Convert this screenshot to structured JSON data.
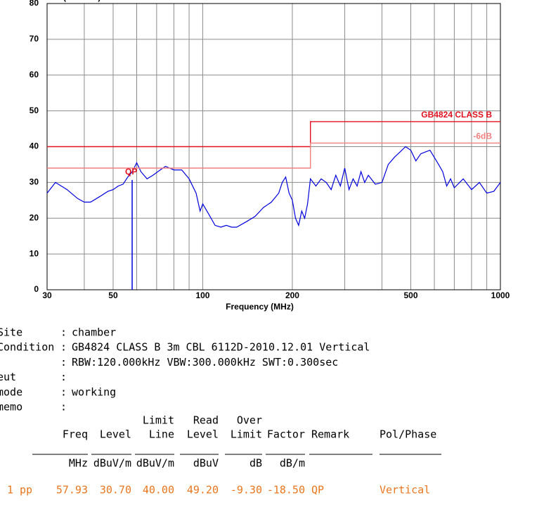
{
  "chart_data": {
    "type": "line",
    "xscale": "log",
    "ylabel": "Level (dBuV/m)",
    "xlabel": "Frequency (MHz)",
    "xlim": [
      30,
      1000
    ],
    "ylim": [
      0,
      80
    ],
    "xticks": [
      30,
      50,
      100,
      200,
      500,
      1000
    ],
    "xminorticks": [
      40,
      60,
      70,
      80,
      90,
      300,
      400,
      600,
      700,
      800,
      900
    ],
    "yticks": [
      0,
      10,
      20,
      30,
      40,
      50,
      60,
      70,
      80
    ],
    "grid": true,
    "series": [
      {
        "color": "#0000dd",
        "x": [
          30,
          32,
          35,
          38,
          40,
          42,
          45,
          48,
          50,
          52,
          54,
          56,
          58,
          60,
          62,
          65,
          68,
          72,
          75,
          80,
          85,
          90,
          95,
          98,
          100,
          105,
          110,
          115,
          120,
          125,
          130,
          140,
          150,
          160,
          170,
          180,
          185,
          190,
          195,
          200,
          205,
          210,
          215,
          220,
          225,
          230,
          240,
          250,
          260,
          270,
          280,
          290,
          300,
          310,
          320,
          330,
          340,
          350,
          360,
          380,
          400,
          420,
          440,
          460,
          480,
          500,
          520,
          540,
          560,
          580,
          600,
          620,
          640,
          660,
          680,
          700,
          750,
          800,
          850,
          900,
          950,
          1000
        ],
        "values": [
          27,
          30,
          28,
          25.5,
          24.5,
          24.5,
          26,
          27.5,
          28,
          29,
          29.5,
          31.5,
          33,
          35.5,
          33,
          31,
          32,
          33.5,
          34.5,
          33.5,
          33.5,
          31,
          27,
          22,
          24,
          21,
          18,
          17.5,
          18,
          17.5,
          17.5,
          19,
          20.5,
          23,
          24.5,
          27,
          30,
          31.5,
          27,
          25,
          20,
          18,
          22,
          20,
          24,
          31,
          29,
          31,
          30,
          28,
          32,
          29,
          34,
          28,
          31,
          29,
          33,
          30,
          32,
          29.5,
          30,
          35,
          37,
          38.5,
          40,
          39,
          36,
          38,
          38.5,
          39,
          37,
          35,
          33,
          29,
          31,
          28.5,
          31,
          28,
          30,
          27,
          27.5,
          30
        ]
      },
      {
        "name": "GB4824 CLASS B",
        "color": "#e0101e",
        "x": [
          30,
          230,
          230,
          1000
        ],
        "values": [
          40,
          40,
          47,
          47
        ]
      },
      {
        "name": "-6dB",
        "color": "#f08080",
        "x": [
          30,
          230,
          230,
          1000
        ],
        "values": [
          34,
          34,
          41,
          41
        ]
      }
    ],
    "marker": {
      "x": 57.93,
      "value": 30.7,
      "label": "QP",
      "color": "#0000dd",
      "label_color": "#e0101e"
    }
  },
  "info": [
    {
      "label": "Site",
      "value": "chamber"
    },
    {
      "label": "Condition",
      "value": "GB4824 CLASS B 3m CBL 6112D-2010.12.01 Vertical"
    },
    {
      "label": null,
      "value": "RBW:120.000kHz VBW:300.000kHz SWT:0.300sec"
    },
    {
      "label": "eut"
    },
    {
      "label": "mode",
      "value": "working"
    },
    {
      "label": "memo"
    }
  ],
  "table": {
    "headers": [
      [
        "Freq"
      ],
      [
        "Level"
      ],
      [
        "Limit",
        "Line"
      ],
      [
        "Read",
        "Level"
      ],
      [
        "Over",
        "Limit"
      ],
      [
        "Factor"
      ],
      [
        "Remark"
      ],
      [
        "Pol/Phase"
      ]
    ],
    "units": [
      "MHz",
      "dBuV/m",
      "dBuV/m",
      "dBuV",
      "dB",
      "dB/m",
      null,
      null
    ],
    "rows": [
      {
        "no": "1",
        "type": "pp",
        "cells": [
          "57.93",
          "30.70",
          "40.00",
          "49.20",
          "-9.30",
          "-18.50",
          "QP",
          "Vertical"
        ]
      }
    ]
  }
}
